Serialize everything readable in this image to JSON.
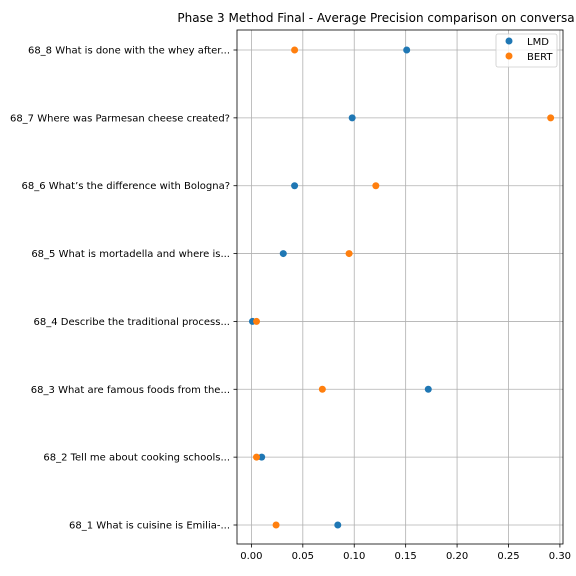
{
  "chart_data": {
    "type": "scatter",
    "orientation": "horizontal",
    "title": "Phase 3 Method Final - Average Precision comparison on conversa",
    "xlabel": "",
    "ylabel": "",
    "xlim": [
      -0.014,
      0.303
    ],
    "xticks": [
      0.0,
      0.05,
      0.1,
      0.15,
      0.2,
      0.25,
      0.3
    ],
    "xtick_labels": [
      "0.00",
      "0.05",
      "0.10",
      "0.15",
      "0.20",
      "0.25",
      "0.30"
    ],
    "grid": true,
    "legend_position": "top-right",
    "categories": [
      "68_1 What is cuisine is Emilia-...",
      "68_2 Tell me about cooking schools...",
      "68_3 What are famous foods from the...",
      "68_4 Describe the traditional process...",
      "68_5 What is mortadella and where is...",
      "68_6 What’s the difference with Bologna?",
      "68_7 Where was Parmesan cheese created?",
      "68_8 What is done with the whey after..."
    ],
    "series": [
      {
        "name": "LMD",
        "color": "#1f77b4",
        "values": [
          0.084,
          0.01,
          0.172,
          0.001,
          0.031,
          0.042,
          0.098,
          0.151
        ]
      },
      {
        "name": "BERT",
        "color": "#ff7f0e",
        "values": [
          0.024,
          0.005,
          0.069,
          0.005,
          0.095,
          0.121,
          0.291,
          0.042
        ]
      }
    ]
  }
}
